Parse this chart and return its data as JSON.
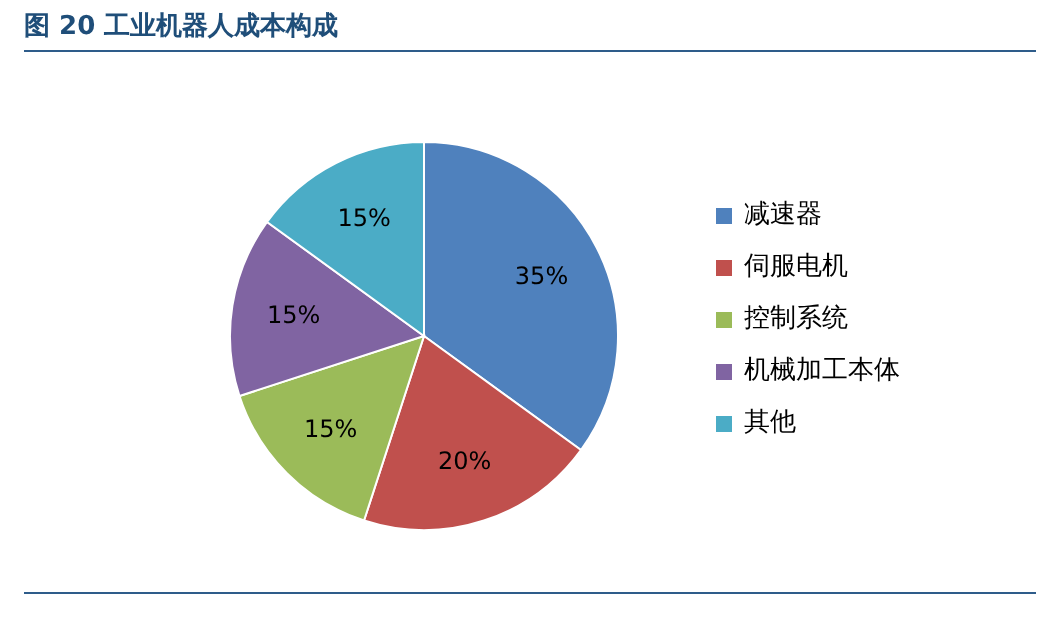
{
  "chart_data": {
    "type": "pie",
    "title": "图 20 工业机器人成本构成",
    "categories": [
      "减速器",
      "伺服电机",
      "控制系统",
      "机械加工本体",
      "其他"
    ],
    "values": [
      35,
      20,
      15,
      15,
      15
    ],
    "colors": [
      "#4f81bd",
      "#c0504d",
      "#9bbb59",
      "#8064a2",
      "#4bacc6"
    ],
    "value_labels": [
      "35%",
      "20%",
      "15%",
      "15%",
      "15%"
    ],
    "legend": "right"
  }
}
